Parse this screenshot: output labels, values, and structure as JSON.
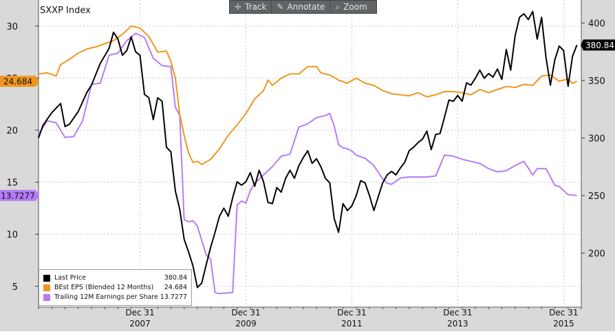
{
  "toolbar": {
    "track_label": "Track",
    "annotate_label": "Annotate",
    "zoom_label": "Zoom",
    "icons": [
      "crosshair-icon",
      "pencil-icon",
      "magnifier-icon"
    ]
  },
  "chart_data": {
    "type": "line",
    "title": "SXXP Index",
    "x_ticks": [
      {
        "label": "Dec 31",
        "year": "2007"
      },
      {
        "label": "Dec 31",
        "year": "2009"
      },
      {
        "label": "Dec 31",
        "year": "2011"
      },
      {
        "label": "Dec 31",
        "year": "2013"
      },
      {
        "label": "Dec 31",
        "year": "2015"
      }
    ],
    "x_range": [
      "2006-01",
      "2016-04"
    ],
    "left_axis": {
      "ticks": [
        5,
        10,
        15,
        20,
        25,
        30
      ],
      "range": [
        3.0,
        32.5
      ]
    },
    "right_axis": {
      "ticks": [
        200,
        250,
        300,
        350,
        400
      ],
      "range": [
        153,
        420
      ]
    },
    "grid": true,
    "legend_position": "bottom-left",
    "series": [
      {
        "name": "Last Price",
        "legend_value": "380.84",
        "last_label": "380.84",
        "color": "#000000",
        "axis": "right",
        "points": [
          [
            "2006-01",
            300
          ],
          [
            "2006-02",
            311
          ],
          [
            "2006-04",
            322
          ],
          [
            "2006-06",
            330
          ],
          [
            "2006-07",
            310
          ],
          [
            "2006-08",
            312
          ],
          [
            "2006-10",
            323
          ],
          [
            "2006-12",
            340
          ],
          [
            "2007-01",
            346
          ],
          [
            "2007-03",
            365
          ],
          [
            "2007-05",
            378
          ],
          [
            "2007-06",
            392
          ],
          [
            "2007-07",
            386
          ],
          [
            "2007-08",
            372
          ],
          [
            "2007-09",
            376
          ],
          [
            "2007-10",
            388
          ],
          [
            "2007-11",
            375
          ],
          [
            "2007-12",
            372
          ],
          [
            "2008-01",
            338
          ],
          [
            "2008-02",
            335
          ],
          [
            "2008-03",
            316
          ],
          [
            "2008-04",
            335
          ],
          [
            "2008-05",
            332
          ],
          [
            "2008-06",
            292
          ],
          [
            "2008-07",
            288
          ],
          [
            "2008-08",
            254
          ],
          [
            "2008-09",
            238
          ],
          [
            "2008-10",
            212
          ],
          [
            "2008-11",
            201
          ],
          [
            "2008-12",
            189
          ],
          [
            "2009-01",
            170
          ],
          [
            "2009-02",
            174
          ],
          [
            "2009-03",
            190
          ],
          [
            "2009-04",
            205
          ],
          [
            "2009-05",
            218
          ],
          [
            "2009-06",
            232
          ],
          [
            "2009-07",
            239
          ],
          [
            "2009-08",
            232
          ],
          [
            "2009-09",
            248
          ],
          [
            "2009-10",
            262
          ],
          [
            "2009-11",
            259
          ],
          [
            "2009-12",
            262
          ],
          [
            "2010-01",
            270
          ],
          [
            "2010-02",
            258
          ],
          [
            "2010-03",
            272
          ],
          [
            "2010-04",
            262
          ],
          [
            "2010-05",
            244
          ],
          [
            "2010-06",
            243
          ],
          [
            "2010-07",
            257
          ],
          [
            "2010-08",
            253
          ],
          [
            "2010-09",
            265
          ],
          [
            "2010-10",
            272
          ],
          [
            "2010-11",
            265
          ],
          [
            "2010-12",
            276
          ],
          [
            "2011-01",
            283
          ],
          [
            "2011-02",
            289
          ],
          [
            "2011-03",
            278
          ],
          [
            "2011-04",
            282
          ],
          [
            "2011-05",
            275
          ],
          [
            "2011-06",
            265
          ],
          [
            "2011-07",
            261
          ],
          [
            "2011-08",
            230
          ],
          [
            "2011-09",
            218
          ],
          [
            "2011-10",
            243
          ],
          [
            "2011-11",
            237
          ],
          [
            "2011-12",
            241
          ],
          [
            "2012-01",
            250
          ],
          [
            "2012-02",
            263
          ],
          [
            "2012-03",
            261
          ],
          [
            "2012-04",
            250
          ],
          [
            "2012-05",
            237
          ],
          [
            "2012-06",
            249
          ],
          [
            "2012-07",
            261
          ],
          [
            "2012-08",
            268
          ],
          [
            "2012-09",
            271
          ],
          [
            "2012-10",
            268
          ],
          [
            "2012-11",
            274
          ],
          [
            "2012-12",
            279
          ],
          [
            "2013-01",
            289
          ],
          [
            "2013-02",
            292
          ],
          [
            "2013-03",
            296
          ],
          [
            "2013-04",
            299
          ],
          [
            "2013-05",
            306
          ],
          [
            "2013-06",
            290
          ],
          [
            "2013-07",
            303
          ],
          [
            "2013-08",
            304
          ],
          [
            "2013-09",
            318
          ],
          [
            "2013-10",
            333
          ],
          [
            "2013-11",
            332
          ],
          [
            "2013-12",
            337
          ],
          [
            "2014-01",
            332
          ],
          [
            "2014-02",
            348
          ],
          [
            "2014-03",
            346
          ],
          [
            "2014-04",
            352
          ],
          [
            "2014-05",
            359
          ],
          [
            "2014-06",
            352
          ],
          [
            "2014-07",
            356
          ],
          [
            "2014-08",
            353
          ],
          [
            "2014-09",
            360
          ],
          [
            "2014-10",
            351
          ],
          [
            "2014-11",
            377
          ],
          [
            "2014-12",
            359
          ],
          [
            "2015-01",
            389
          ],
          [
            "2015-02",
            405
          ],
          [
            "2015-03",
            408
          ],
          [
            "2015-04",
            403
          ],
          [
            "2015-05",
            410
          ],
          [
            "2015-06",
            386
          ],
          [
            "2015-07",
            405
          ],
          [
            "2015-08",
            370
          ],
          [
            "2015-09",
            346
          ],
          [
            "2015-10",
            368
          ],
          [
            "2015-11",
            380
          ],
          [
            "2015-12",
            376
          ],
          [
            "2016-01",
            345
          ],
          [
            "2016-02",
            371
          ],
          [
            "2016-03",
            380.84
          ]
        ]
      },
      {
        "name": "BEst EPS (Blended 12 Months)",
        "legend_value": "24.684",
        "last_label": "24.684",
        "color": "#f0961e",
        "axis": "left",
        "points": [
          [
            "2006-01",
            25.4
          ],
          [
            "2006-03",
            25.5
          ],
          [
            "2006-05",
            25.2
          ],
          [
            "2006-06",
            26.3
          ],
          [
            "2006-08",
            26.8
          ],
          [
            "2006-10",
            27.4
          ],
          [
            "2006-12",
            27.8
          ],
          [
            "2007-02",
            28.0
          ],
          [
            "2007-04",
            28.3
          ],
          [
            "2007-06",
            28.6
          ],
          [
            "2007-08",
            29.2
          ],
          [
            "2007-10",
            30.0
          ],
          [
            "2007-12",
            29.8
          ],
          [
            "2008-02",
            29.0
          ],
          [
            "2008-04",
            27.5
          ],
          [
            "2008-06",
            27.6
          ],
          [
            "2008-07",
            26.6
          ],
          [
            "2008-08",
            25.0
          ],
          [
            "2008-09",
            21.5
          ],
          [
            "2008-10",
            19.5
          ],
          [
            "2008-11",
            17.8
          ],
          [
            "2008-12",
            16.9
          ],
          [
            "2009-01",
            17.0
          ],
          [
            "2009-02",
            16.7
          ],
          [
            "2009-04",
            17.2
          ],
          [
            "2009-06",
            18.2
          ],
          [
            "2009-08",
            19.5
          ],
          [
            "2009-10",
            20.5
          ],
          [
            "2009-12",
            21.6
          ],
          [
            "2010-02",
            23.0
          ],
          [
            "2010-04",
            23.8
          ],
          [
            "2010-05",
            24.8
          ],
          [
            "2010-06",
            24.3
          ],
          [
            "2010-08",
            25.0
          ],
          [
            "2010-10",
            25.4
          ],
          [
            "2010-12",
            25.4
          ],
          [
            "2011-02",
            26.1
          ],
          [
            "2011-04",
            26.1
          ],
          [
            "2011-05",
            25.5
          ],
          [
            "2011-07",
            25.3
          ],
          [
            "2011-09",
            24.8
          ],
          [
            "2011-11",
            24.5
          ],
          [
            "2012-01",
            25.0
          ],
          [
            "2012-03",
            24.5
          ],
          [
            "2012-05",
            24.3
          ],
          [
            "2012-07",
            23.8
          ],
          [
            "2012-09",
            23.5
          ],
          [
            "2012-11",
            23.4
          ],
          [
            "2013-01",
            23.3
          ],
          [
            "2013-03",
            23.6
          ],
          [
            "2013-05",
            23.2
          ],
          [
            "2013-07",
            23.4
          ],
          [
            "2013-09",
            23.7
          ],
          [
            "2013-11",
            23.7
          ],
          [
            "2014-01",
            23.6
          ],
          [
            "2014-03",
            23.4
          ],
          [
            "2014-05",
            23.9
          ],
          [
            "2014-07",
            23.6
          ],
          [
            "2014-09",
            23.9
          ],
          [
            "2014-11",
            24.2
          ],
          [
            "2015-01",
            24.1
          ],
          [
            "2015-03",
            24.4
          ],
          [
            "2015-05",
            24.3
          ],
          [
            "2015-07",
            25.2
          ],
          [
            "2015-09",
            25.3
          ],
          [
            "2015-11",
            24.7
          ],
          [
            "2016-01",
            24.9
          ],
          [
            "2016-02",
            24.5
          ],
          [
            "2016-03",
            24.684
          ]
        ]
      },
      {
        "name": "Trailing 12M Earnings per Share",
        "legend_value": "13.7277",
        "last_label": "13.7277",
        "color": "#b57cf7",
        "axis": "left",
        "points": [
          [
            "2006-01",
            19.6
          ],
          [
            "2006-03",
            20.9
          ],
          [
            "2006-05",
            20.7
          ],
          [
            "2006-07",
            19.3
          ],
          [
            "2006-09",
            19.4
          ],
          [
            "2006-11",
            20.9
          ],
          [
            "2007-01",
            24.4
          ],
          [
            "2007-03",
            24.5
          ],
          [
            "2007-05",
            27.2
          ],
          [
            "2007-07",
            27.4
          ],
          [
            "2007-09",
            28.6
          ],
          [
            "2007-11",
            29.3
          ],
          [
            "2008-01",
            28.9
          ],
          [
            "2008-03",
            26.9
          ],
          [
            "2008-05",
            26.2
          ],
          [
            "2008-07",
            26.1
          ],
          [
            "2008-08",
            22.2
          ],
          [
            "2008-09",
            21.4
          ],
          [
            "2008-10",
            11.4
          ],
          [
            "2008-11",
            11.2
          ],
          [
            "2008-12",
            11.3
          ],
          [
            "2009-01",
            10.8
          ],
          [
            "2009-03",
            8.0
          ],
          [
            "2009-04",
            7.6
          ],
          [
            "2009-05",
            4.4
          ],
          [
            "2009-06",
            4.3
          ],
          [
            "2009-09",
            4.4
          ],
          [
            "2009-10",
            12.8
          ],
          [
            "2009-11",
            13.2
          ],
          [
            "2009-12",
            13.0
          ],
          [
            "2010-01",
            14.2
          ],
          [
            "2010-02",
            14.9
          ],
          [
            "2010-04",
            15.7
          ],
          [
            "2010-06",
            16.5
          ],
          [
            "2010-08",
            17.5
          ],
          [
            "2010-10",
            17.7
          ],
          [
            "2010-12",
            20.3
          ],
          [
            "2011-02",
            20.6
          ],
          [
            "2011-04",
            21.2
          ],
          [
            "2011-06",
            21.4
          ],
          [
            "2011-07",
            21.6
          ],
          [
            "2011-08",
            20.4
          ],
          [
            "2011-09",
            18.6
          ],
          [
            "2011-10",
            18.3
          ],
          [
            "2011-11",
            18.2
          ],
          [
            "2011-12",
            18.0
          ],
          [
            "2012-01",
            17.6
          ],
          [
            "2012-03",
            17.3
          ],
          [
            "2012-05",
            16.6
          ],
          [
            "2012-07",
            15.3
          ],
          [
            "2012-08",
            14.9
          ],
          [
            "2012-09",
            14.8
          ],
          [
            "2012-11",
            15.4
          ],
          [
            "2013-01",
            15.5
          ],
          [
            "2013-03",
            15.5
          ],
          [
            "2013-05",
            15.5
          ],
          [
            "2013-07",
            15.6
          ],
          [
            "2013-09",
            17.6
          ],
          [
            "2013-11",
            17.5
          ],
          [
            "2014-01",
            17.2
          ],
          [
            "2014-03",
            17.0
          ],
          [
            "2014-05",
            16.8
          ],
          [
            "2014-07",
            16.3
          ],
          [
            "2014-09",
            16.0
          ],
          [
            "2014-11",
            16.1
          ],
          [
            "2015-01",
            16.6
          ],
          [
            "2015-03",
            17.0
          ],
          [
            "2015-05",
            15.7
          ],
          [
            "2015-06",
            16.3
          ],
          [
            "2015-08",
            16.3
          ],
          [
            "2015-10",
            14.7
          ],
          [
            "2015-11",
            14.6
          ],
          [
            "2016-01",
            13.8
          ],
          [
            "2016-03",
            13.7277
          ]
        ]
      }
    ]
  }
}
